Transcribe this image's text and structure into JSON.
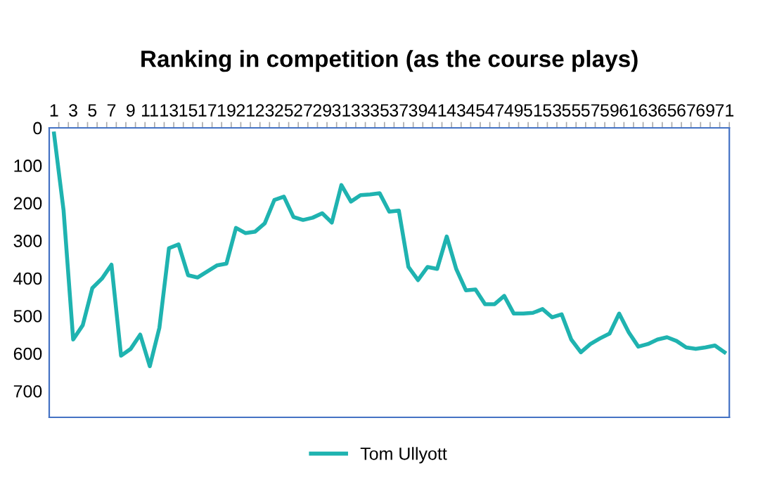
{
  "chart_data": {
    "type": "line",
    "title": "Ranking in competition (as the course plays)",
    "categories": [
      "1",
      null,
      "3",
      null,
      "5",
      null,
      "7",
      null,
      "9",
      null,
      "11",
      null,
      "13",
      null,
      "15",
      null,
      "17",
      null,
      "19",
      null,
      "21",
      null,
      "23",
      null,
      "25",
      null,
      "27",
      null,
      "29",
      null,
      "31",
      null,
      "33",
      null,
      "35",
      null,
      "37",
      null,
      "39",
      null,
      "41",
      null,
      "43",
      null,
      "45",
      null,
      "47",
      null,
      "49",
      null,
      "51",
      null,
      "53",
      null,
      "55",
      null,
      "57",
      null,
      "59",
      null,
      "61",
      null,
      "63",
      null,
      "65",
      null,
      "67",
      null,
      "69",
      null,
      "71"
    ],
    "series": [
      {
        "name": "Tom Ullyott",
        "color": "#1fb3b0",
        "values": [
          15,
          220,
          563,
          525,
          426,
          401,
          364,
          606,
          588,
          550,
          634,
          532,
          320,
          310,
          392,
          398,
          382,
          366,
          361,
          266,
          280,
          276,
          254,
          192,
          183,
          237,
          245,
          239,
          227,
          252,
          152,
          196,
          179,
          177,
          174,
          223,
          220,
          370,
          405,
          370,
          375,
          289,
          376,
          432,
          430,
          469,
          469,
          447,
          494,
          494,
          492,
          482,
          504,
          496,
          563,
          597,
          575,
          560,
          547,
          494,
          544,
          582,
          575,
          563,
          557,
          567,
          584,
          588,
          584,
          579,
          597
        ]
      }
    ],
    "ylim": [
      770,
      0
    ],
    "yticks": [
      0,
      100,
      200,
      300,
      400,
      500,
      600,
      700
    ],
    "legend": "bottom",
    "grid": false,
    "marker": "none",
    "line_style": "solid"
  }
}
